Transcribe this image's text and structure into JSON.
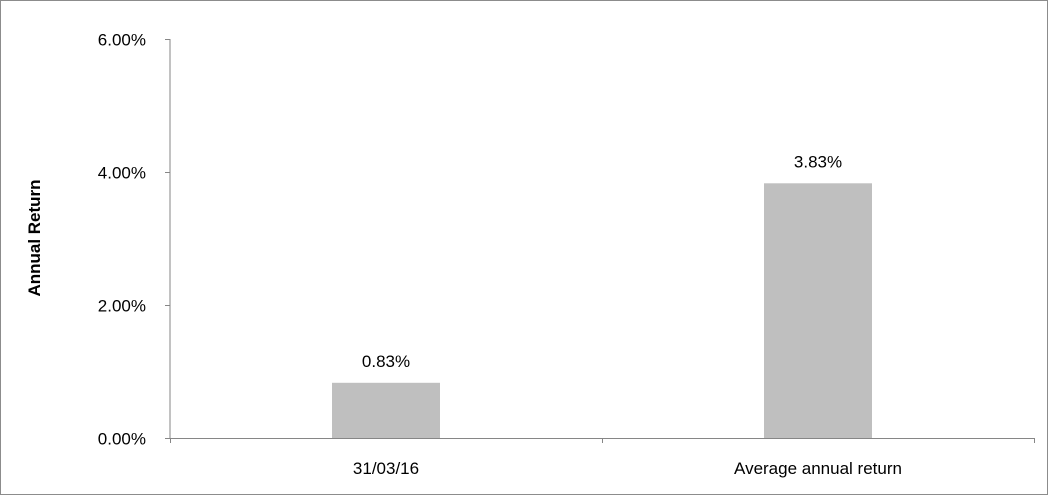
{
  "chart_data": {
    "type": "bar",
    "categories": [
      "31/03/16",
      "Average annual return"
    ],
    "values": [
      0.83,
      3.83
    ],
    "data_labels": [
      "0.83%",
      "3.83%"
    ],
    "title": "",
    "xlabel": "",
    "ylabel": "Annual Return",
    "ylim": [
      0,
      6
    ],
    "yticks": [
      0,
      2,
      4,
      6
    ],
    "ytick_labels": [
      "0.00%",
      "2.00%",
      "4.00%",
      "6.00%"
    ],
    "unit": "%",
    "grid": false,
    "legend": "none",
    "bar_color": "#bfbfbf",
    "axis_color": "#868686"
  }
}
